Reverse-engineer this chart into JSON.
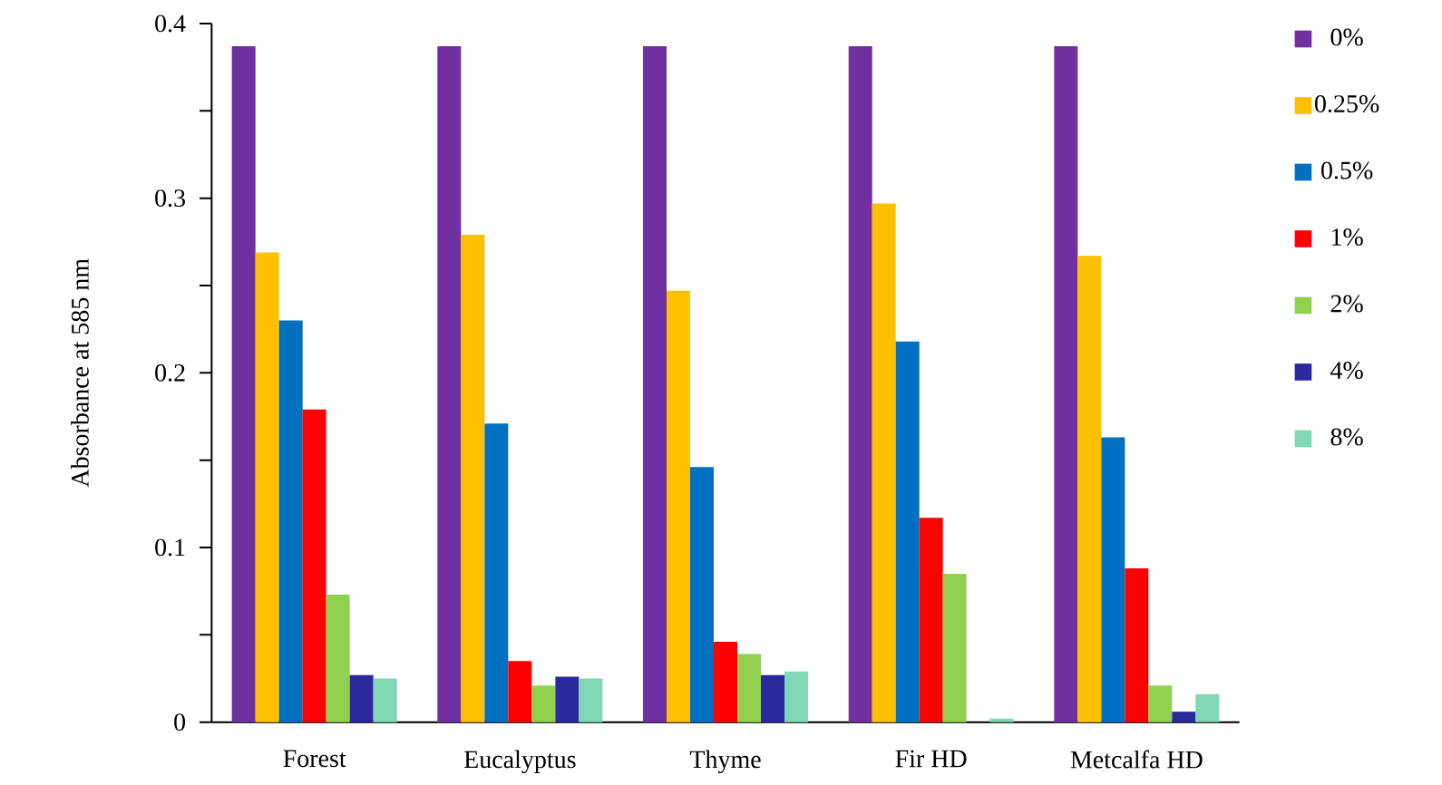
{
  "chart_data": {
    "type": "bar",
    "ylabel": "Absorbance at 585 nm",
    "categories": [
      "Forest",
      "Eucalyptus",
      "Thyme",
      "Fir HD",
      "Metcalfa HD"
    ],
    "series": [
      {
        "name": "0%",
        "color": "#7030a0",
        "values": [
          0.387,
          0.387,
          0.387,
          0.387,
          0.387
        ]
      },
      {
        "name": "0.25%",
        "color": "#ffc000",
        "values": [
          0.269,
          0.279,
          0.247,
          0.297,
          0.267
        ]
      },
      {
        "name": "0.5%",
        "color": "#0070c0",
        "values": [
          0.23,
          0.171,
          0.146,
          0.218,
          0.163
        ]
      },
      {
        "name": "1%",
        "color": "#ff0000",
        "values": [
          0.179,
          0.035,
          0.046,
          0.117,
          0.088
        ]
      },
      {
        "name": "2%",
        "color": "#92d050",
        "values": [
          0.073,
          0.021,
          0.039,
          0.085,
          0.021
        ]
      },
      {
        "name": "4%",
        "color": "#2a2a9e",
        "values": [
          0.027,
          0.026,
          0.027,
          0.0,
          0.006
        ]
      },
      {
        "name": "8%",
        "color": "#80d8b4",
        "values": [
          0.025,
          0.025,
          0.029,
          0.002,
          0.016
        ]
      }
    ],
    "ylim": [
      0,
      0.4
    ],
    "yticks": [
      0,
      {
        "value": 0.05,
        "label": null
      },
      0.1,
      {
        "value": 0.15,
        "label": null
      },
      0.2,
      {
        "value": 0.25,
        "label": null
      },
      0.3,
      {
        "value": 0.35,
        "label": null
      },
      0.4
    ],
    "grid": false,
    "legend": "right"
  }
}
